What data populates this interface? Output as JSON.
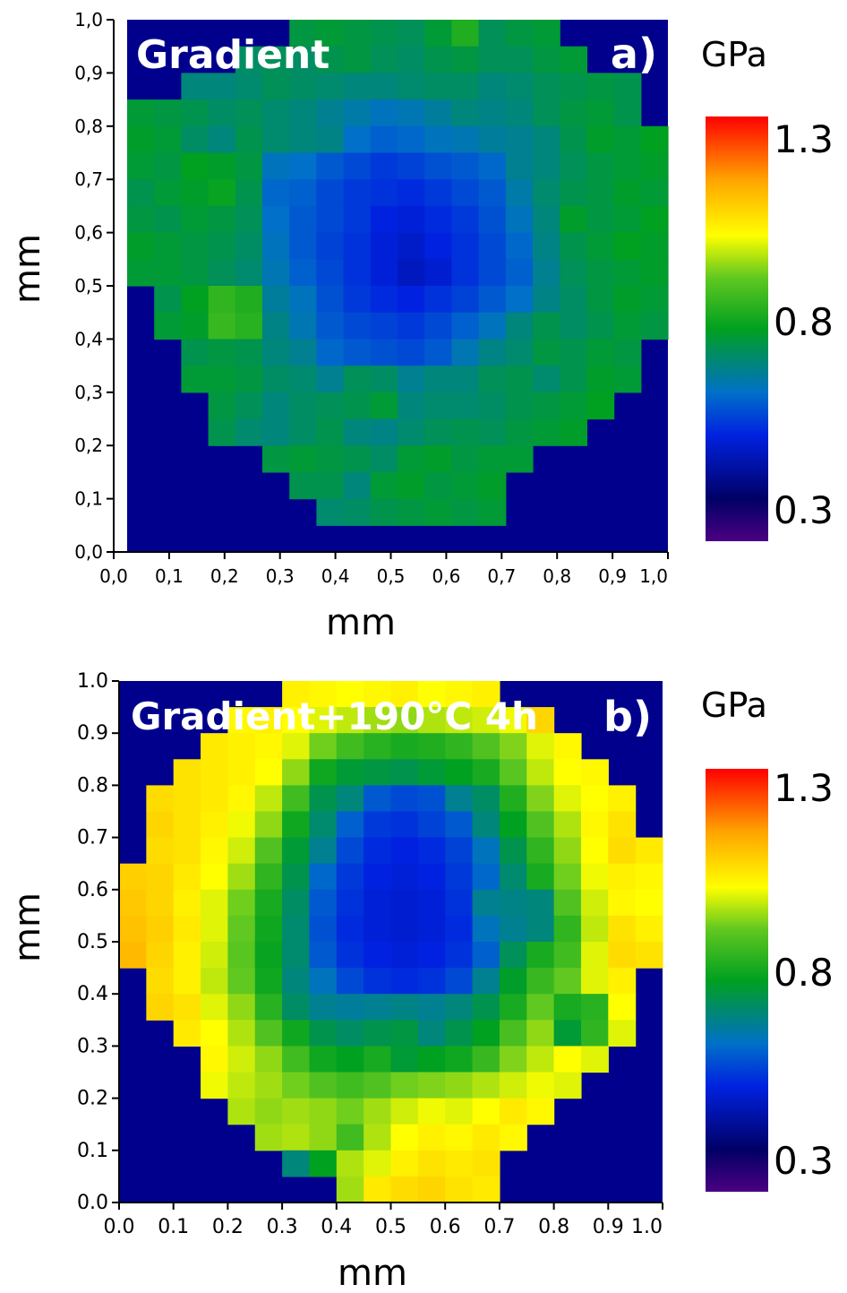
{
  "chart_data": [
    {
      "type": "heatmap",
      "panel_title": "Gradient",
      "panel_label": "a)",
      "xlabel": "mm",
      "ylabel": "mm",
      "xlim": [
        0.0,
        1.0
      ],
      "ylim": [
        0.0,
        1.0
      ],
      "x_tick_labels": [
        "0,0",
        "0,1",
        "0,2",
        "0,3",
        "0,4",
        "0,5",
        "0,6",
        "0,7",
        "0,8",
        "0,9",
        "1,0"
      ],
      "y_tick_labels": [
        "0,0",
        "0,1",
        "0,2",
        "0,3",
        "0,4",
        "0,5",
        "0,6",
        "0,7",
        "0,8",
        "0,9",
        "1,0"
      ],
      "colorbar": {
        "unit": "GPa",
        "max_label": "1.3",
        "mid_label": "0.8",
        "min_label": "0.3",
        "min": 0.3,
        "max": 1.3
      },
      "background_color": "#00008c",
      "grid_size": 20,
      "cell_size_mm": 0.05,
      "first_row_y_mm": 0.975,
      "row_step_mm": -0.05,
      "value_unit": "GPa",
      "values": [
        [
          null,
          null,
          null,
          null,
          null,
          null,
          0.77,
          0.78,
          0.77,
          0.76,
          0.75,
          0.78,
          0.84,
          0.75,
          0.77,
          0.78,
          null,
          null,
          null,
          null
        ],
        [
          null,
          null,
          null,
          null,
          0.74,
          0.75,
          0.74,
          0.76,
          0.77,
          0.75,
          0.74,
          0.76,
          0.77,
          0.75,
          0.75,
          0.77,
          0.78,
          null,
          null,
          null
        ],
        [
          null,
          null,
          0.72,
          0.72,
          0.73,
          0.75,
          0.74,
          0.73,
          0.72,
          0.72,
          0.73,
          0.74,
          0.74,
          0.72,
          0.73,
          0.75,
          0.76,
          0.77,
          0.76,
          null
        ],
        [
          0.78,
          0.77,
          0.76,
          0.74,
          0.75,
          0.73,
          0.72,
          0.7,
          0.68,
          0.66,
          0.67,
          0.69,
          0.72,
          0.71,
          0.72,
          0.75,
          0.77,
          0.78,
          0.76,
          null
        ],
        [
          0.79,
          0.78,
          0.74,
          0.72,
          0.76,
          0.73,
          0.72,
          0.71,
          0.65,
          0.63,
          0.64,
          0.66,
          0.67,
          0.69,
          0.7,
          0.72,
          0.76,
          0.79,
          0.78,
          0.8
        ],
        [
          0.78,
          0.77,
          0.8,
          0.79,
          0.77,
          0.66,
          0.65,
          0.62,
          0.6,
          0.58,
          0.59,
          0.61,
          0.62,
          0.64,
          0.7,
          0.72,
          0.75,
          0.77,
          0.78,
          0.79
        ],
        [
          0.76,
          0.78,
          0.79,
          0.81,
          0.76,
          0.64,
          0.63,
          0.6,
          0.58,
          0.57,
          0.56,
          0.58,
          0.6,
          0.62,
          0.68,
          0.73,
          0.76,
          0.77,
          0.79,
          0.78
        ],
        [
          0.77,
          0.76,
          0.78,
          0.77,
          0.75,
          0.65,
          0.62,
          0.6,
          0.58,
          0.55,
          0.54,
          0.56,
          0.58,
          0.61,
          0.66,
          0.72,
          0.79,
          0.77,
          0.78,
          0.8
        ],
        [
          0.79,
          0.78,
          0.77,
          0.76,
          0.74,
          0.66,
          0.62,
          0.59,
          0.57,
          0.54,
          0.52,
          0.55,
          0.57,
          0.6,
          0.64,
          0.71,
          0.76,
          0.78,
          0.8,
          0.79
        ],
        [
          0.78,
          0.78,
          0.77,
          0.75,
          0.73,
          0.67,
          0.63,
          0.6,
          0.57,
          0.54,
          0.51,
          0.53,
          0.57,
          0.6,
          0.63,
          0.7,
          0.75,
          0.77,
          0.78,
          0.79
        ],
        [
          null,
          0.76,
          0.8,
          0.86,
          0.84,
          0.69,
          0.66,
          0.61,
          0.58,
          0.56,
          0.55,
          0.57,
          0.59,
          0.62,
          0.65,
          0.71,
          0.74,
          0.77,
          0.79,
          0.78
        ],
        [
          null,
          0.78,
          0.79,
          0.87,
          0.85,
          0.71,
          0.67,
          0.62,
          0.6,
          0.59,
          0.58,
          0.6,
          0.63,
          0.66,
          0.72,
          0.76,
          0.74,
          0.76,
          0.78,
          0.77
        ],
        [
          null,
          null,
          0.76,
          0.77,
          0.76,
          0.72,
          0.7,
          0.64,
          0.62,
          0.61,
          0.6,
          0.62,
          0.67,
          0.71,
          0.73,
          0.77,
          0.76,
          0.78,
          0.77,
          null
        ],
        [
          null,
          null,
          0.78,
          0.78,
          0.77,
          0.74,
          0.73,
          0.7,
          0.75,
          0.74,
          0.7,
          0.72,
          0.72,
          0.75,
          0.76,
          0.73,
          0.76,
          0.79,
          0.78,
          null
        ],
        [
          null,
          null,
          null,
          0.77,
          0.75,
          0.72,
          0.74,
          0.75,
          0.76,
          0.78,
          0.72,
          0.73,
          0.73,
          0.74,
          0.76,
          0.77,
          0.78,
          0.8,
          null,
          null
        ],
        [
          null,
          null,
          null,
          0.76,
          0.73,
          0.72,
          0.74,
          0.76,
          0.72,
          0.71,
          0.73,
          0.75,
          0.76,
          0.75,
          0.77,
          0.78,
          0.79,
          null,
          null,
          null
        ],
        [
          null,
          null,
          null,
          null,
          null,
          0.77,
          0.78,
          0.77,
          0.76,
          0.74,
          0.78,
          0.79,
          0.77,
          0.78,
          0.78,
          null,
          null,
          null,
          null,
          null
        ],
        [
          null,
          null,
          null,
          null,
          null,
          null,
          0.76,
          0.76,
          0.72,
          0.78,
          0.79,
          0.77,
          0.78,
          0.79,
          null,
          null,
          null,
          null,
          null,
          null
        ],
        [
          null,
          null,
          null,
          null,
          null,
          null,
          null,
          0.73,
          0.74,
          0.76,
          0.77,
          0.78,
          0.77,
          0.78,
          null,
          null,
          null,
          null,
          null,
          null
        ],
        [
          null,
          null,
          null,
          null,
          null,
          null,
          null,
          null,
          null,
          null,
          null,
          null,
          null,
          null,
          null,
          null,
          null,
          null,
          null,
          null
        ]
      ]
    },
    {
      "type": "heatmap",
      "panel_title": "Gradient+190°C 4h",
      "panel_label": "b)",
      "xlabel": "mm",
      "ylabel": "mm",
      "xlim": [
        0.0,
        1.0
      ],
      "ylim": [
        0.0,
        1.0
      ],
      "x_tick_labels": [
        "0.0",
        "0.1",
        "0.2",
        "0.3",
        "0.4",
        "0.5",
        "0.6",
        "0.7",
        "0.8",
        "0.9",
        "1.0"
      ],
      "y_tick_labels": [
        "0.0",
        "0.1",
        "0.2",
        "0.3",
        "0.4",
        "0.5",
        "0.6",
        "0.7",
        "0.8",
        "0.9",
        "1.0"
      ],
      "colorbar": {
        "unit": "GPa",
        "max_label": "1.3",
        "mid_label": "0.8",
        "min_label": "0.3",
        "min": 0.3,
        "max": 1.3
      },
      "background_color": "#00008c",
      "grid_size": 20,
      "cell_size_mm": 0.05,
      "first_row_y_mm": 0.975,
      "row_step_mm": -0.05,
      "value_unit": "GPa",
      "values": [
        [
          null,
          null,
          null,
          null,
          null,
          null,
          1.04,
          1.03,
          1.02,
          1.03,
          1.04,
          1.02,
          1.03,
          1.04,
          null,
          null,
          null,
          null,
          null,
          null
        ],
        [
          null,
          null,
          null,
          null,
          1.03,
          1.04,
          1.02,
          1.0,
          0.98,
          0.96,
          0.95,
          0.97,
          0.98,
          0.99,
          1.01,
          1.08,
          null,
          null,
          null,
          null
        ],
        [
          null,
          null,
          null,
          1.05,
          1.04,
          1.03,
          1.0,
          0.93,
          0.88,
          0.85,
          0.83,
          0.84,
          0.86,
          0.9,
          0.94,
          1.0,
          1.03,
          null,
          null,
          null
        ],
        [
          null,
          null,
          1.06,
          1.05,
          1.04,
          1.02,
          0.95,
          0.82,
          0.78,
          0.77,
          0.76,
          0.78,
          0.8,
          0.83,
          0.91,
          0.98,
          1.02,
          1.03,
          null,
          null
        ],
        [
          null,
          1.07,
          1.06,
          1.05,
          1.03,
          0.98,
          0.88,
          0.76,
          0.72,
          0.62,
          0.6,
          0.61,
          0.7,
          0.74,
          0.84,
          0.94,
          1.0,
          1.02,
          1.04,
          null
        ],
        [
          null,
          1.08,
          1.06,
          1.04,
          1.01,
          0.95,
          0.82,
          0.73,
          0.63,
          0.58,
          0.57,
          0.59,
          0.62,
          0.72,
          0.8,
          0.9,
          0.97,
          1.03,
          1.06,
          null
        ],
        [
          null,
          1.07,
          1.06,
          1.03,
          0.99,
          0.9,
          0.78,
          0.7,
          0.6,
          0.56,
          0.55,
          0.56,
          0.59,
          0.66,
          0.76,
          0.86,
          0.95,
          1.02,
          1.07,
          1.05
        ],
        [
          1.09,
          1.08,
          1.05,
          1.02,
          0.96,
          0.86,
          0.76,
          0.64,
          0.58,
          0.55,
          0.54,
          0.55,
          0.58,
          0.64,
          0.73,
          0.83,
          0.93,
          1.01,
          1.04,
          1.03
        ],
        [
          1.1,
          1.08,
          1.04,
          1.0,
          0.93,
          0.83,
          0.74,
          0.62,
          0.57,
          0.54,
          0.53,
          0.54,
          0.57,
          0.7,
          0.71,
          0.72,
          0.9,
          0.99,
          1.03,
          1.02
        ],
        [
          1.11,
          1.09,
          1.05,
          1.0,
          0.92,
          0.82,
          0.73,
          0.61,
          0.56,
          0.54,
          0.53,
          0.54,
          0.56,
          0.66,
          0.7,
          0.72,
          0.86,
          0.98,
          1.06,
          1.04
        ],
        [
          1.12,
          1.08,
          1.04,
          0.99,
          0.91,
          0.81,
          0.73,
          0.62,
          0.57,
          0.55,
          0.54,
          0.55,
          0.57,
          0.63,
          0.75,
          0.83,
          0.88,
          1.0,
          1.07,
          1.06
        ],
        [
          null,
          1.07,
          1.04,
          0.98,
          0.92,
          0.82,
          0.72,
          0.66,
          0.6,
          0.57,
          0.56,
          0.57,
          0.6,
          0.7,
          0.79,
          0.87,
          0.92,
          1.0,
          1.04,
          null
        ],
        [
          null,
          1.08,
          1.06,
          1.0,
          0.95,
          0.85,
          0.74,
          0.7,
          0.69,
          0.7,
          0.71,
          0.7,
          0.72,
          0.76,
          0.83,
          0.92,
          0.83,
          0.85,
          1.02,
          null
        ],
        [
          null,
          null,
          1.05,
          1.02,
          0.97,
          0.9,
          0.82,
          0.76,
          0.74,
          0.76,
          0.77,
          0.72,
          0.76,
          0.8,
          0.89,
          0.95,
          0.78,
          0.86,
          1.0,
          null
        ],
        [
          null,
          null,
          null,
          1.03,
          0.99,
          0.95,
          0.88,
          0.82,
          0.8,
          0.83,
          0.78,
          0.8,
          0.82,
          0.87,
          0.94,
          0.98,
          1.02,
          1.0,
          null,
          null
        ],
        [
          null,
          null,
          null,
          1.01,
          0.98,
          0.96,
          0.93,
          0.9,
          0.88,
          0.9,
          0.93,
          0.94,
          0.95,
          0.97,
          0.99,
          1.01,
          1.0,
          null,
          null,
          null
        ],
        [
          null,
          null,
          null,
          null,
          0.97,
          0.95,
          0.96,
          0.95,
          0.93,
          0.96,
          0.99,
          1.01,
          1.0,
          1.02,
          1.05,
          1.03,
          null,
          null,
          null,
          null
        ],
        [
          null,
          null,
          null,
          null,
          null,
          0.96,
          0.97,
          0.95,
          0.88,
          0.97,
          1.02,
          1.04,
          1.03,
          1.05,
          1.03,
          null,
          null,
          null,
          null,
          null
        ],
        [
          null,
          null,
          null,
          null,
          null,
          null,
          0.72,
          0.8,
          0.97,
          1.0,
          1.04,
          1.06,
          1.05,
          1.06,
          null,
          null,
          null,
          null,
          null,
          null
        ],
        [
          null,
          null,
          null,
          null,
          null,
          null,
          null,
          null,
          0.96,
          1.05,
          1.07,
          1.08,
          1.06,
          1.05,
          null,
          null,
          null,
          null,
          null,
          null
        ]
      ]
    }
  ]
}
